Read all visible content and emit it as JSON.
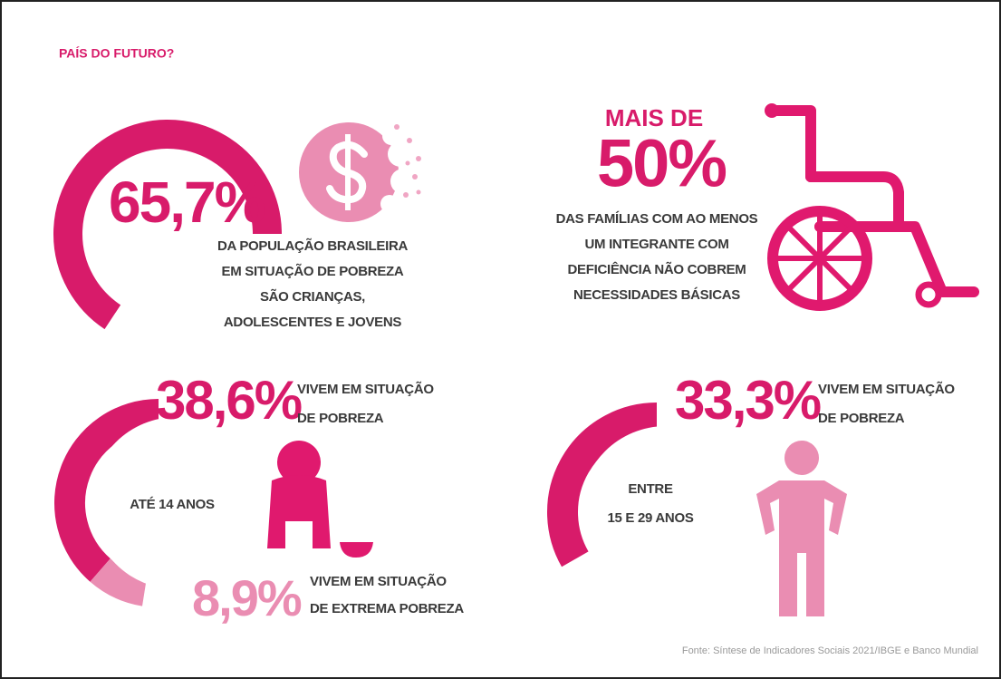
{
  "header": {
    "title": "PAÍS DO FUTURO?"
  },
  "poverty_youth": {
    "value": 65.7,
    "label": "65,7%",
    "lines": [
      "DA POPULAÇÃO BRASILEIRA",
      "EM SITUAÇÃO DE POBREZA",
      "SÃO CRIANÇAS,",
      "ADOLESCENTES E JOVENS"
    ]
  },
  "disability": {
    "prefix": "MAIS DE",
    "label": "50%",
    "lines": [
      "DAS FAMÍLIAS COM AO MENOS",
      "UM INTEGRANTE COM",
      "DEFICIÊNCIA NÃO COBREM",
      "NECESSIDADES BÁSICAS"
    ]
  },
  "children": {
    "group": "ATÉ 14 ANOS",
    "value": 38.6,
    "label": "38,6%",
    "lines": [
      "VIVEM EM SITUAÇÃO",
      "DE POBREZA"
    ],
    "extreme": {
      "value": 8.9,
      "label": "8,9%",
      "lines": [
        "VIVEM EM SITUAÇÃO",
        "DE EXTREMA POBREZA"
      ]
    }
  },
  "young_adults": {
    "group": [
      "ENTRE",
      "15 E 29 ANOS"
    ],
    "value": 33.3,
    "label": "33,3%",
    "lines": [
      "VIVEM EM SITUAÇÃO",
      "DE POBREZA"
    ]
  },
  "source": "Fonte: Síntese de Indicadores Sociais 2021/IBGE e Banco Mundial"
}
